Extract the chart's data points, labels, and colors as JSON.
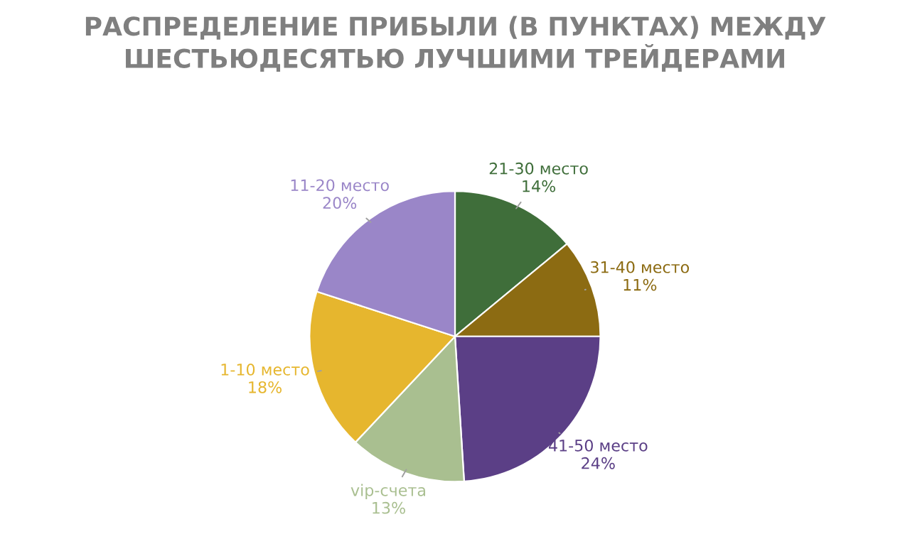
{
  "chart_data": {
    "type": "pie",
    "title": "РАСПРЕДЕЛЕНИЕ ПРИБЫЛИ (В ПУНКТАХ) МЕЖДУ ШЕСТЬЮДЕСЯТЬЮ ЛУЧШИМИ ТРЕЙДЕРАМИ",
    "categories": [
      "21-30 место",
      "31-40 место",
      "41-50 место",
      "vip-счета",
      "1-10 место",
      "11-20 место"
    ],
    "values": [
      14,
      11,
      24,
      13,
      18,
      20
    ],
    "value_labels": [
      "14%",
      "11%",
      "24%",
      "13%",
      "18%",
      "20%"
    ],
    "colors": [
      "#3f6e3a",
      "#8c6b12",
      "#5b3f86",
      "#a9bf90",
      "#e6b62e",
      "#9a86c8"
    ]
  }
}
